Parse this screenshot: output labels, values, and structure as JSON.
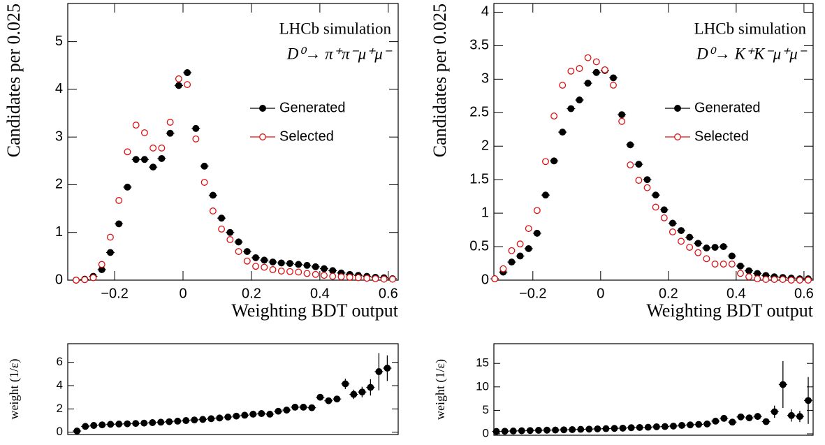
{
  "chart_data": [
    {
      "type": "scatter",
      "ylabel": "Candidates per 0.025",
      "xlabel": "Weighting BDT output",
      "annotations": [
        "LHCb simulation",
        "D⁰→ π⁺π⁻μ⁺μ⁻"
      ],
      "legend": "right",
      "x": [
        -0.3125,
        -0.2875,
        -0.2625,
        -0.2375,
        -0.2125,
        -0.1875,
        -0.1625,
        -0.1375,
        -0.1125,
        -0.0875,
        -0.0625,
        -0.0375,
        -0.0125,
        0.0125,
        0.0375,
        0.0625,
        0.0875,
        0.1125,
        0.1375,
        0.1625,
        0.1875,
        0.2125,
        0.2375,
        0.2625,
        0.2875,
        0.3125,
        0.3375,
        0.3625,
        0.3875,
        0.4125,
        0.4375,
        0.4625,
        0.4875,
        0.5125,
        0.5375,
        0.5625,
        0.5875,
        0.6125
      ],
      "series": [
        {
          "name": "Generated",
          "color": "#000000",
          "marker": "filled",
          "values": [
            0,
            0.02,
            0.08,
            0.22,
            0.58,
            1.18,
            1.95,
            2.53,
            2.53,
            2.37,
            2.55,
            3.08,
            4.08,
            4.35,
            3.18,
            2.39,
            1.78,
            1.3,
            1.0,
            0.8,
            0.6,
            0.47,
            0.42,
            0.38,
            0.36,
            0.35,
            0.33,
            0.31,
            0.28,
            0.24,
            0.2,
            0.15,
            0.12,
            0.1,
            0.08,
            0.06,
            0.05,
            0.03
          ]
        },
        {
          "name": "Selected",
          "color": "#dd1111",
          "marker": "open",
          "values": [
            0,
            0.01,
            0.05,
            0.33,
            0.9,
            1.67,
            2.69,
            3.25,
            3.09,
            2.77,
            2.77,
            3.31,
            4.22,
            4.1,
            2.96,
            2.05,
            1.45,
            1.07,
            0.85,
            0.6,
            0.4,
            0.29,
            0.27,
            0.22,
            0.19,
            0.18,
            0.17,
            0.14,
            0.12,
            0.1,
            0.08,
            0.07,
            0.06,
            0.05,
            0.04,
            0.03,
            0.02,
            0.02
          ]
        }
      ],
      "xlim": [
        -0.337,
        0.629
      ],
      "ylim": [
        0,
        5.8
      ],
      "xticks": [
        {
          "value": -0.2,
          "label": "−0.2"
        },
        0,
        0.2,
        0.4,
        0.6
      ],
      "yticks": [
        0,
        1,
        2,
        3,
        4,
        5
      ]
    },
    {
      "type": "scatter",
      "ylabel": "Candidates per 0.025",
      "xlabel": "Weighting BDT output",
      "annotations": [
        "LHCb simulation",
        "D⁰→ K⁺K⁻μ⁺μ⁻"
      ],
      "legend": "right",
      "x": [
        -0.3125,
        -0.2875,
        -0.2625,
        -0.2375,
        -0.2125,
        -0.1875,
        -0.1625,
        -0.1375,
        -0.1125,
        -0.0875,
        -0.0625,
        -0.0375,
        -0.0125,
        0.0125,
        0.0375,
        0.0625,
        0.0875,
        0.1125,
        0.1375,
        0.1625,
        0.1875,
        0.2125,
        0.2375,
        0.2625,
        0.2875,
        0.3125,
        0.3375,
        0.3625,
        0.3875,
        0.4125,
        0.4375,
        0.4625,
        0.4875,
        0.5125,
        0.5375,
        0.5625,
        0.5875,
        0.6125
      ],
      "series": [
        {
          "name": "Generated",
          "color": "#000000",
          "marker": "filled",
          "values": [
            0.02,
            0.12,
            0.27,
            0.36,
            0.47,
            0.7,
            1.27,
            1.78,
            2.21,
            2.56,
            2.69,
            2.94,
            3.1,
            3.13,
            3.02,
            2.47,
            2.02,
            1.73,
            1.5,
            1.27,
            1.05,
            0.85,
            0.74,
            0.64,
            0.55,
            0.48,
            0.49,
            0.5,
            0.36,
            0.21,
            0.14,
            0.1,
            0.07,
            0.05,
            0.04,
            0.03,
            0.02,
            0.02
          ]
        },
        {
          "name": "Selected",
          "color": "#dd1111",
          "marker": "open",
          "values": [
            0.02,
            0.17,
            0.44,
            0.54,
            0.77,
            1.04,
            1.77,
            2.45,
            2.91,
            3.12,
            3.16,
            3.32,
            3.26,
            3.14,
            2.91,
            2.37,
            1.72,
            1.49,
            1.38,
            1.09,
            0.93,
            0.72,
            0.58,
            0.49,
            0.41,
            0.32,
            0.24,
            0.24,
            0.24,
            0.1,
            0.05,
            0.02,
            0.01,
            0.01,
            0.01,
            0,
            0,
            0
          ]
        }
      ],
      "xlim": [
        -0.315,
        0.627
      ],
      "ylim": [
        0,
        4.13
      ],
      "xticks": [
        {
          "value": -0.2,
          "label": "−0.2"
        },
        0,
        0.2,
        0.4,
        0.6
      ],
      "yticks": [
        0,
        0.5,
        1,
        1.5,
        2,
        2.5,
        3,
        3.5,
        4
      ]
    },
    {
      "type": "errorbar",
      "ylabel": "weight (1/ε)",
      "color": "#000000",
      "x": [
        -0.3125,
        -0.2875,
        -0.2625,
        -0.2375,
        -0.2125,
        -0.1875,
        -0.1625,
        -0.1375,
        -0.1125,
        -0.0875,
        -0.0625,
        -0.0375,
        -0.0125,
        0.0125,
        0.0375,
        0.0625,
        0.0875,
        0.1125,
        0.1375,
        0.1625,
        0.1875,
        0.2125,
        0.2375,
        0.2625,
        0.2875,
        0.3125,
        0.3375,
        0.3625,
        0.3875,
        0.4125,
        0.4375,
        0.4625,
        0.4875,
        0.5125,
        0.5375,
        0.5625,
        0.5875,
        0.6125
      ],
      "values": [
        0.1,
        0.5,
        0.58,
        0.63,
        0.68,
        0.7,
        0.72,
        0.75,
        0.78,
        0.82,
        0.86,
        0.9,
        0.95,
        1.0,
        1.05,
        1.1,
        1.16,
        1.22,
        1.3,
        1.38,
        1.46,
        1.55,
        1.6,
        1.55,
        1.8,
        1.9,
        2.15,
        2.15,
        2.1,
        3.0,
        2.7,
        2.85,
        4.15,
        3.25,
        3.45,
        3.85,
        5.2,
        5.5
      ],
      "errors": [
        0.05,
        0.05,
        0.04,
        0.03,
        0.03,
        0.03,
        0.03,
        0.03,
        0.03,
        0.03,
        0.03,
        0.03,
        0.03,
        0.03,
        0.04,
        0.04,
        0.04,
        0.04,
        0.05,
        0.05,
        0.05,
        0.06,
        0.06,
        0.06,
        0.07,
        0.08,
        0.1,
        0.1,
        0.1,
        0.15,
        0.15,
        0.15,
        0.45,
        0.4,
        0.45,
        0.7,
        1.6,
        1.1
      ],
      "xlim": [
        -0.34,
        0.645
      ],
      "ylim": [
        -0.2,
        7.6
      ],
      "yticks": [
        0,
        2,
        4,
        6
      ]
    },
    {
      "type": "errorbar",
      "ylabel": "weight (1/ε)",
      "color": "#000000",
      "x": [
        -0.3125,
        -0.2875,
        -0.2625,
        -0.2375,
        -0.2125,
        -0.1875,
        -0.1625,
        -0.1375,
        -0.1125,
        -0.0875,
        -0.0625,
        -0.0375,
        -0.0125,
        0.0125,
        0.0375,
        0.0625,
        0.0875,
        0.1125,
        0.1375,
        0.1625,
        0.1875,
        0.2125,
        0.2375,
        0.2625,
        0.2875,
        0.3125,
        0.3375,
        0.3625,
        0.3875,
        0.4125,
        0.4375,
        0.4625,
        0.4875,
        0.5125,
        0.5375,
        0.5625,
        0.5875,
        0.6125
      ],
      "values": [
        0.5,
        0.55,
        0.6,
        0.65,
        0.7,
        0.75,
        0.78,
        0.8,
        0.85,
        0.9,
        0.95,
        1.0,
        1.05,
        1.1,
        1.15,
        1.2,
        1.3,
        1.35,
        1.4,
        1.5,
        1.55,
        1.65,
        1.8,
        1.9,
        2.0,
        2.1,
        2.7,
        3.3,
        2.5,
        3.6,
        3.4,
        3.7,
        2.6,
        4.7,
        10.5,
        3.9,
        3.7,
        7.1
      ],
      "errors": [
        0.2,
        0.1,
        0.08,
        0.06,
        0.05,
        0.05,
        0.05,
        0.05,
        0.05,
        0.05,
        0.05,
        0.05,
        0.05,
        0.05,
        0.05,
        0.05,
        0.06,
        0.06,
        0.07,
        0.08,
        0.1,
        0.1,
        0.12,
        0.15,
        0.2,
        0.2,
        0.3,
        0.4,
        0.3,
        0.5,
        0.5,
        0.7,
        0.6,
        1.3,
        5,
        1.3,
        1.2,
        5
      ],
      "xlim": [
        -0.32,
        0.627
      ],
      "ylim": [
        -0.3,
        19.2
      ],
      "yticks": [
        0,
        5,
        10,
        15
      ]
    }
  ]
}
